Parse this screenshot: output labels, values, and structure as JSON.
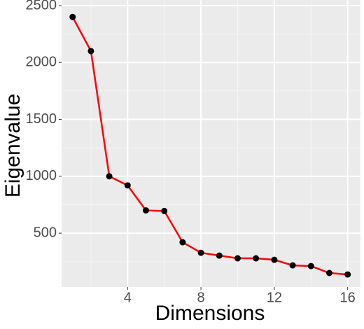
{
  "chart_data": {
    "type": "line",
    "x_label": "Dimensions",
    "y_label": "Eigenvalue",
    "x": [
      1,
      2,
      3,
      4,
      5,
      6,
      7,
      8,
      9,
      10,
      11,
      12,
      13,
      14,
      15,
      16
    ],
    "series": [
      {
        "color": "#ff0000",
        "values": [
          2400,
          2100,
          1000,
          920,
          700,
          695,
          420,
          328,
          303,
          279,
          279,
          266,
          217,
          211,
          150,
          137
        ]
      }
    ],
    "xlim": [
      0.4,
      16.7
    ],
    "xticks": [
      4,
      8,
      12,
      16
    ],
    "ylim": [
      27,
      2549
    ],
    "yticks": [
      500,
      1000,
      1500,
      2000,
      2500
    ],
    "grid": true
  }
}
